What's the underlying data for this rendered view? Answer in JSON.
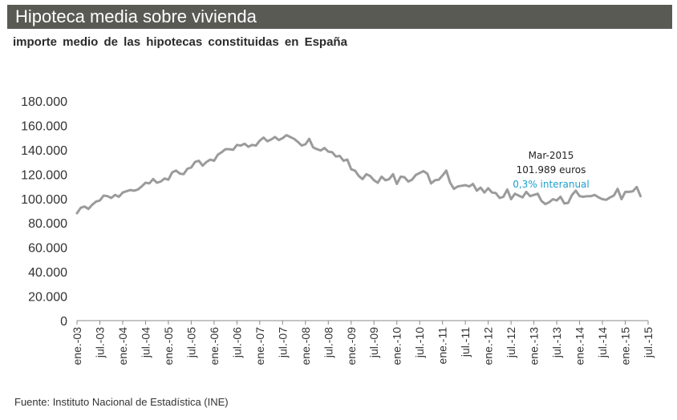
{
  "header": {
    "title": "Hipoteca media sobre vivienda",
    "subtitle": "importe  medio  de las  hipotecas  constituidas   en España"
  },
  "footer": {
    "source": "Fuente: Instituto Nacional de Estadística (INE)"
  },
  "annotation": {
    "date": "Mar-2015",
    "value": "101.989 euros",
    "change": "0,3% interanual"
  },
  "colors": {
    "title_bar": "#5a5a55",
    "line": "#9b9b9b",
    "axis": "#8a8a8a",
    "annotation_change": "#1aa0d0"
  },
  "chart_data": {
    "type": "line",
    "title": "Hipoteca media sobre vivienda",
    "subtitle": "importe  medio  de las  hipotecas  constituidas   en España",
    "ylim": [
      0,
      180000
    ],
    "yticks": [
      0,
      20000,
      40000,
      60000,
      80000,
      100000,
      120000,
      140000,
      160000,
      180000
    ],
    "ytick_labels": [
      "0",
      "20.000",
      "40.000",
      "60.000",
      "80.000",
      "100.000",
      "120.000",
      "140.000",
      "160.000",
      "180.000"
    ],
    "xtick_labels": [
      "ene.-03",
      "jul.-03",
      "ene.-04",
      "jul.-04",
      "ene.-05",
      "jul.-05",
      "ene.-06",
      "jul.-06",
      "ene.-07",
      "jul.-07",
      "ene.-08",
      "jul.-08",
      "ene.-09",
      "jul.-09",
      "ene.-10",
      "jul.-10",
      "ene.-11",
      "jul.-11",
      "ene.-12",
      "jul.-12",
      "ene.-13",
      "jul.-13",
      "ene.-14",
      "jul.-14",
      "ene.-15",
      "jul.-15"
    ],
    "grid": false,
    "series": [
      {
        "start": "ene.-03",
        "end": "mar.-15",
        "values": [
          88000,
          92500,
          93500,
          91500,
          95000,
          97500,
          98500,
          102500,
          102000,
          100500,
          103000,
          101500,
          105000,
          106000,
          107000,
          106500,
          107500,
          110000,
          113000,
          112500,
          116000,
          113000,
          114000,
          116500,
          115500,
          121500,
          123000,
          120500,
          120000,
          124500,
          125500,
          130000,
          131000,
          127000,
          130000,
          132000,
          131000,
          136000,
          138000,
          140500,
          140500,
          140000,
          144000,
          143500,
          145000,
          142500,
          144000,
          143500,
          147500,
          150000,
          147000,
          148500,
          150500,
          148000,
          149500,
          152000,
          150500,
          149000,
          146500,
          143500,
          144500,
          149000,
          142000,
          140500,
          139500,
          141500,
          138500,
          138000,
          134500,
          135000,
          131000,
          132000,
          124000,
          123000,
          118500,
          116000,
          120000,
          118500,
          115000,
          113000,
          118000,
          115000,
          116000,
          120000,
          112000,
          118000,
          117500,
          114000,
          115500,
          119500,
          121000,
          122500,
          120500,
          112500,
          115000,
          115500,
          119000,
          123000,
          113000,
          108000,
          110000,
          110500,
          111000,
          110000,
          112000,
          106500,
          109000,
          105000,
          108500,
          105000,
          104500,
          100500,
          101500,
          107500,
          99500,
          104000,
          102500,
          101000,
          105500,
          102000,
          103000,
          104000,
          98000,
          95500,
          97000,
          99500,
          98500,
          101500,
          96000,
          96500,
          103000,
          106500,
          102000,
          101500,
          102000,
          102000,
          103000,
          101000,
          99500,
          99000,
          101000,
          102500,
          108000,
          99500,
          105500,
          105500,
          106000,
          109500,
          102000
        ]
      }
    ]
  }
}
